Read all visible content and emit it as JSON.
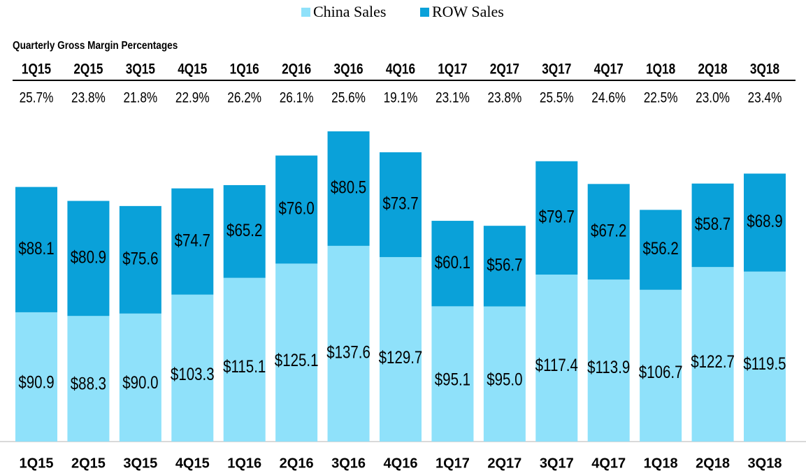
{
  "chart_data": {
    "type": "stacked_bar",
    "categories": [
      "1Q15",
      "2Q15",
      "3Q15",
      "4Q15",
      "1Q16",
      "2Q16",
      "3Q16",
      "4Q16",
      "1Q17",
      "2Q17",
      "3Q17",
      "4Q17",
      "1Q18",
      "2Q18",
      "3Q18"
    ],
    "series": [
      {
        "name": "China Sales",
        "color": "#8fe1fa",
        "values": [
          90.9,
          88.3,
          90.0,
          103.3,
          115.1,
          125.1,
          137.6,
          129.7,
          95.1,
          95.0,
          117.4,
          113.9,
          106.7,
          122.7,
          119.5
        ],
        "value_labels": [
          "$90.9",
          "$88.3",
          "$90.0",
          "$103.3",
          "$115.1",
          "$125.1",
          "$137.6",
          "$129.7",
          "$95.1",
          "$95.0",
          "$117.4",
          "$113.9",
          "$106.7",
          "$122.7",
          "$119.5"
        ]
      },
      {
        "name": "ROW Sales",
        "color": "#0aa1d9",
        "values": [
          88.1,
          80.9,
          75.6,
          74.7,
          65.2,
          76.0,
          80.5,
          73.7,
          60.1,
          56.7,
          79.7,
          67.2,
          56.2,
          58.7,
          68.9
        ],
        "value_labels": [
          "$88.1",
          "$80.9",
          "$75.6",
          "$74.7",
          "$65.2",
          "$76.0",
          "$80.5",
          "$73.7",
          "$60.1",
          "$56.7",
          "$79.7",
          "$67.2",
          "$56.2",
          "$58.7",
          "$68.9"
        ]
      }
    ],
    "legend": "top",
    "gross_margin": {
      "title": "Quarterly Gross Margin Percentages",
      "values": [
        25.7,
        23.8,
        21.8,
        22.9,
        26.2,
        26.1,
        25.6,
        19.1,
        23.1,
        23.8,
        25.5,
        24.6,
        22.5,
        23.0,
        23.4
      ],
      "value_labels": [
        "25.7%",
        "23.8%",
        "21.8%",
        "22.9%",
        "26.2%",
        "26.1%",
        "25.6%",
        "19.1%",
        "23.1%",
        "23.8%",
        "25.5%",
        "24.6%",
        "22.5%",
        "23.0%",
        "23.4%"
      ]
    }
  }
}
